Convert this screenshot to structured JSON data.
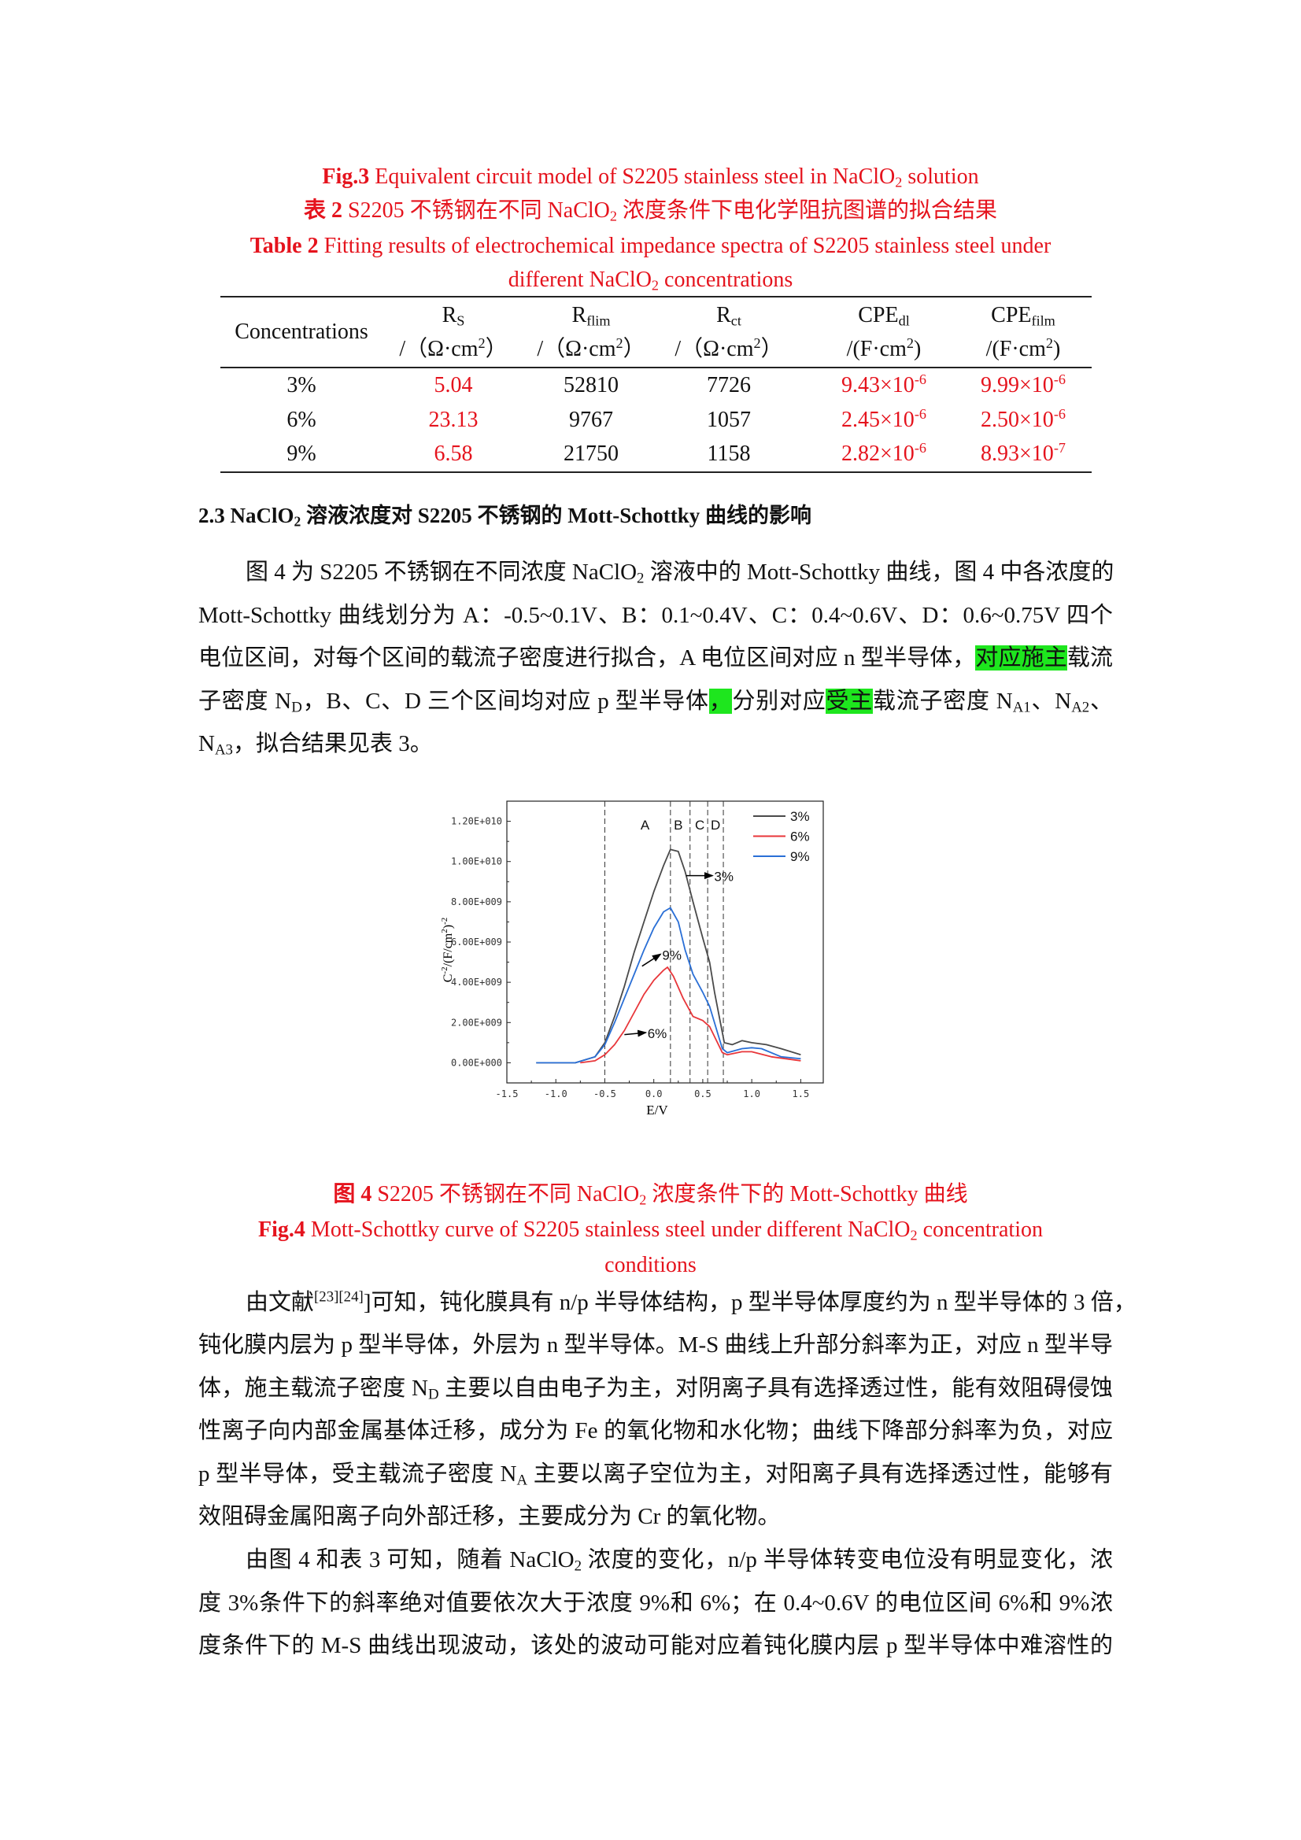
{
  "fig3_caption": {
    "label": "Fig.3",
    "text": " Equivalent circuit model of S2205 stainless steel in NaClO",
    "sub": "2",
    "tail": " solution"
  },
  "table2_cn": {
    "label": "表 2",
    "text": " S2205 不锈钢在不同 NaClO",
    "sub": "2",
    "tail": " 浓度条件下电化学阻抗图谱的拟合结果"
  },
  "table2_en": {
    "label": "Table 2",
    "text": " Fitting results of electrochemical impedance spectra of S2205 stainless steel under",
    "line2": "different NaClO",
    "sub": "2",
    "tail": " concentrations"
  },
  "table": {
    "headers": [
      {
        "main": "Concentrations"
      },
      {
        "main": "R",
        "sub": "S",
        "unit_pre": "/（Ω·cm",
        "unit_sup": "2",
        "unit_post": "）"
      },
      {
        "main": "R",
        "sub": "flim",
        "unit_pre": "/（Ω·cm",
        "unit_sup": "2",
        "unit_post": "）"
      },
      {
        "main": "R",
        "sub": "ct",
        "unit_pre": "/（Ω·cm",
        "unit_sup": "2",
        "unit_post": "）"
      },
      {
        "main": "CPE",
        "sub": "dl",
        "unit_pre": "/(F·cm",
        "unit_sup": "2",
        "unit_post": ")"
      },
      {
        "main": "CPE",
        "sub": "film",
        "unit_pre": "/(F·cm",
        "unit_sup": "2",
        "unit_post": ")"
      }
    ],
    "rows": [
      {
        "conc": "3%",
        "rs": "5.04",
        "rflim": "52810",
        "rct": "7726",
        "cpedl": {
          "m": "9.43×10",
          "e": "-6"
        },
        "cpefilm": {
          "m": "9.99×10",
          "e": "-6"
        }
      },
      {
        "conc": "6%",
        "rs": "23.13",
        "rflim": "9767",
        "rct": "1057",
        "cpedl": {
          "m": "2.45×10",
          "e": "-6"
        },
        "cpefilm": {
          "m": "2.50×10",
          "e": "-6"
        }
      },
      {
        "conc": "9%",
        "rs": "6.58",
        "rflim": "21750",
        "rct": "1158",
        "cpedl": {
          "m": "2.82×10",
          "e": "-6"
        },
        "cpefilm": {
          "m": "8.93×10",
          "e": "-7"
        }
      }
    ],
    "highlight_color": "#e5131d"
  },
  "section": {
    "pre": "2.3 NaClO",
    "sub": "2",
    "post": " 溶液浓度对 S2205 不锈钢的 Mott-Schottky  曲线的影响"
  },
  "para1": [
    [
      {
        "t": "图 4 为 S2205 不锈钢在不同浓度 NaClO"
      },
      {
        "t": "2",
        "sub": true
      },
      {
        "t": " 溶液中的 Mott-Schottky 曲线，图 4 中各浓度的"
      }
    ],
    [
      {
        "t": "Mott-Schottky 曲线划分为 A：-0.5~0.1V、B：0.1~0.4V、C：0.4~0.6V、D：0.6~0.75V 四个"
      }
    ],
    [
      {
        "t": "电位区间，对每个区间的载流子密度进行拟合，A 电位区间对应 n 型半导体，"
      },
      {
        "t": "对应施主",
        "hl": true
      },
      {
        "t": "载流"
      }
    ],
    [
      {
        "t": "子密度 N"
      },
      {
        "t": "D",
        "sub": true
      },
      {
        "t": "，B、C、D 三个区间均对应 p 型半导体"
      },
      {
        "t": "，",
        "hl": true
      },
      {
        "t": "分别对应"
      },
      {
        "t": "受主",
        "hl": true
      },
      {
        "t": "载流子密度 N"
      },
      {
        "t": "A1",
        "sub": true
      },
      {
        "t": "、N"
      },
      {
        "t": "A2",
        "sub": true
      },
      {
        "t": "、"
      }
    ],
    [
      {
        "t": "N"
      },
      {
        "t": "A3",
        "sub": true
      },
      {
        "t": "，拟合结果见表 3。"
      }
    ]
  ],
  "fig4_cn": {
    "label": "图 4",
    "text": " S2205 不锈钢在不同 NaClO",
    "sub": "2",
    "tail": " 浓度条件下的 Mott-Schottky 曲线"
  },
  "fig4_en": {
    "label": "Fig.4",
    "text": " Mott-Schottky curve of S2205 stainless steel under different NaClO",
    "sub": "2",
    "tail": " concentration",
    "line2": "conditions"
  },
  "para2": [
    [
      {
        "t": "由文献"
      },
      {
        "t": "[23][24]",
        "sup": true
      },
      {
        "t": "]可知，钝化膜具有 n/p 半导体结构，p 型半导体厚度约为 n 型半导体的 3 倍，"
      }
    ],
    [
      {
        "t": "钝化膜内层为 p 型半导体，外层为 n 型半导体。M-S 曲线上升部分斜率为正，对应 n 型半导"
      }
    ],
    [
      {
        "t": "体，施主载流子密度 N"
      },
      {
        "t": "D",
        "sub": true
      },
      {
        "t": " 主要以自由电子为主，对阴离子具有选择透过性，能有效阻碍侵蚀"
      }
    ],
    [
      {
        "t": "性离子向内部金属基体迁移，成分为 Fe 的氧化物和水化物；曲线下降部分斜率为负，对应"
      }
    ],
    [
      {
        "t": "p 型半导体，受主载流子密度 N"
      },
      {
        "t": "A",
        "sub": true
      },
      {
        "t": " 主要以离子空位为主，对阳离子具有选择透过性，能够有"
      }
    ],
    [
      {
        "t": "效阻碍金属阳离子向外部迁移，主要成分为 Cr 的氧化物。"
      }
    ]
  ],
  "para3": [
    [
      {
        "t": "由图 4 和表 3 可知，随着 NaClO"
      },
      {
        "t": "2",
        "sub": true
      },
      {
        "t": " 浓度的变化，n/p 半导体转变电位没有明显变化，浓"
      }
    ],
    [
      {
        "t": "度 3%条件下的斜率绝对值要依次大于浓度 9%和 6%；在 0.4~0.6V 的电位区间 6%和 9%浓"
      }
    ],
    [
      {
        "t": "度条件下的 M-S 曲线出现波动，该处的波动可能对应着钝化膜内层 p 型半导体中难溶性的"
      }
    ]
  ],
  "chart_data": {
    "type": "line",
    "xlabel": "E/V",
    "ylabel": {
      "pre": "C",
      "sup1": "-2",
      "mid": "/(F/cm",
      "sup2": "2",
      "post": ")",
      "sup3": "-2"
    },
    "xlim": [
      -1.5,
      1.73
    ],
    "ylim": [
      -1000000000.0,
      13000000000.0
    ],
    "xticks": [
      -1.5,
      -1.0,
      -0.5,
      0.0,
      0.5,
      1.0,
      1.5
    ],
    "xtick_labels": [
      "-1.5",
      "-1.0",
      "-0.5",
      "0.0",
      "0.5",
      "1.0",
      "1.5"
    ],
    "yticks": [
      0,
      2000000000.0,
      4000000000.0,
      6000000000.0,
      8000000000.0,
      10000000000.0,
      12000000000.0
    ],
    "ytick_labels": [
      "0.00E+000",
      "2.00E+009",
      "4.00E+009",
      "6.00E+009",
      "8.00E+009",
      "1.00E+010",
      "1.20E+010"
    ],
    "grid": false,
    "legend": "top-right",
    "region_boundaries": [
      -0.5,
      0.17,
      0.37,
      0.55,
      0.71
    ],
    "region_labels": [
      {
        "t": "A",
        "x": -0.09
      },
      {
        "t": "B",
        "x": 0.25
      },
      {
        "t": "C",
        "x": 0.47
      },
      {
        "t": "D",
        "x": 0.63
      }
    ],
    "series": [
      {
        "name": "3%",
        "color": "#4a4a4a",
        "x": [
          -1.2,
          -0.8,
          -0.6,
          -0.5,
          -0.4,
          -0.3,
          -0.2,
          -0.1,
          0,
          0.1,
          0.17,
          0.25,
          0.32,
          0.4,
          0.5,
          0.57,
          0.62,
          0.68,
          0.72,
          0.8,
          0.9,
          1.0,
          1.15,
          1.3,
          1.5
        ],
        "y": [
          0,
          0,
          300000000.0,
          1000000000.0,
          2300000000.0,
          3800000000.0,
          5500000000.0,
          7000000000.0,
          8500000000.0,
          9800000000.0,
          10600000000.0,
          10500000000.0,
          9500000000.0,
          8000000000.0,
          6200000000.0,
          5000000000.0,
          3500000000.0,
          2000000000.0,
          1000000000.0,
          900000000.0,
          1100000000.0,
          1000000000.0,
          900000000.0,
          700000000.0,
          400000000.0
        ]
      },
      {
        "name": "6%",
        "color": "#e8363a",
        "x": [
          -0.75,
          -0.6,
          -0.5,
          -0.4,
          -0.3,
          -0.2,
          -0.1,
          0,
          0.1,
          0.14,
          0.2,
          0.3,
          0.4,
          0.5,
          0.57,
          0.65,
          0.7,
          0.75,
          0.9,
          1.0,
          1.2,
          1.5
        ],
        "y": [
          0,
          100000000.0,
          400000000.0,
          900000000.0,
          1600000000.0,
          2500000000.0,
          3400000000.0,
          4100000000.0,
          4600000000.0,
          4750000000.0,
          4300000000.0,
          3200000000.0,
          2300000000.0,
          2100000000.0,
          1800000000.0,
          1000000000.0,
          500000000.0,
          400000000.0,
          550000000.0,
          550000000.0,
          300000000.0,
          100000000.0
        ]
      },
      {
        "name": "9%",
        "color": "#2a6fd6",
        "x": [
          -1.2,
          -0.8,
          -0.6,
          -0.5,
          -0.4,
          -0.3,
          -0.2,
          -0.1,
          0,
          0.1,
          0.17,
          0.25,
          0.32,
          0.4,
          0.5,
          0.57,
          0.65,
          0.7,
          0.75,
          0.9,
          1.0,
          1.1,
          1.3,
          1.5
        ],
        "y": [
          0,
          0,
          300000000.0,
          900000000.0,
          2000000000.0,
          3200000000.0,
          4400000000.0,
          5600000000.0,
          6700000000.0,
          7500000000.0,
          7700000000.0,
          7000000000.0,
          5600000000.0,
          4400000000.0,
          3500000000.0,
          2800000000.0,
          1500000000.0,
          700000000.0,
          500000000.0,
          700000000.0,
          750000000.0,
          700000000.0,
          300000000.0,
          200000000.0
        ]
      }
    ],
    "annotations": [
      {
        "t": "3%",
        "from": [
          0.33,
          9300000000.0
        ],
        "to": [
          0.6,
          9300000000.0
        ]
      },
      {
        "t": "9%",
        "from": [
          -0.12,
          4800000000.0
        ],
        "to": [
          0.07,
          5400000000.0
        ]
      },
      {
        "t": "6%",
        "from": [
          -0.3,
          1400000000.0
        ],
        "to": [
          -0.08,
          1500000000.0
        ]
      }
    ]
  }
}
